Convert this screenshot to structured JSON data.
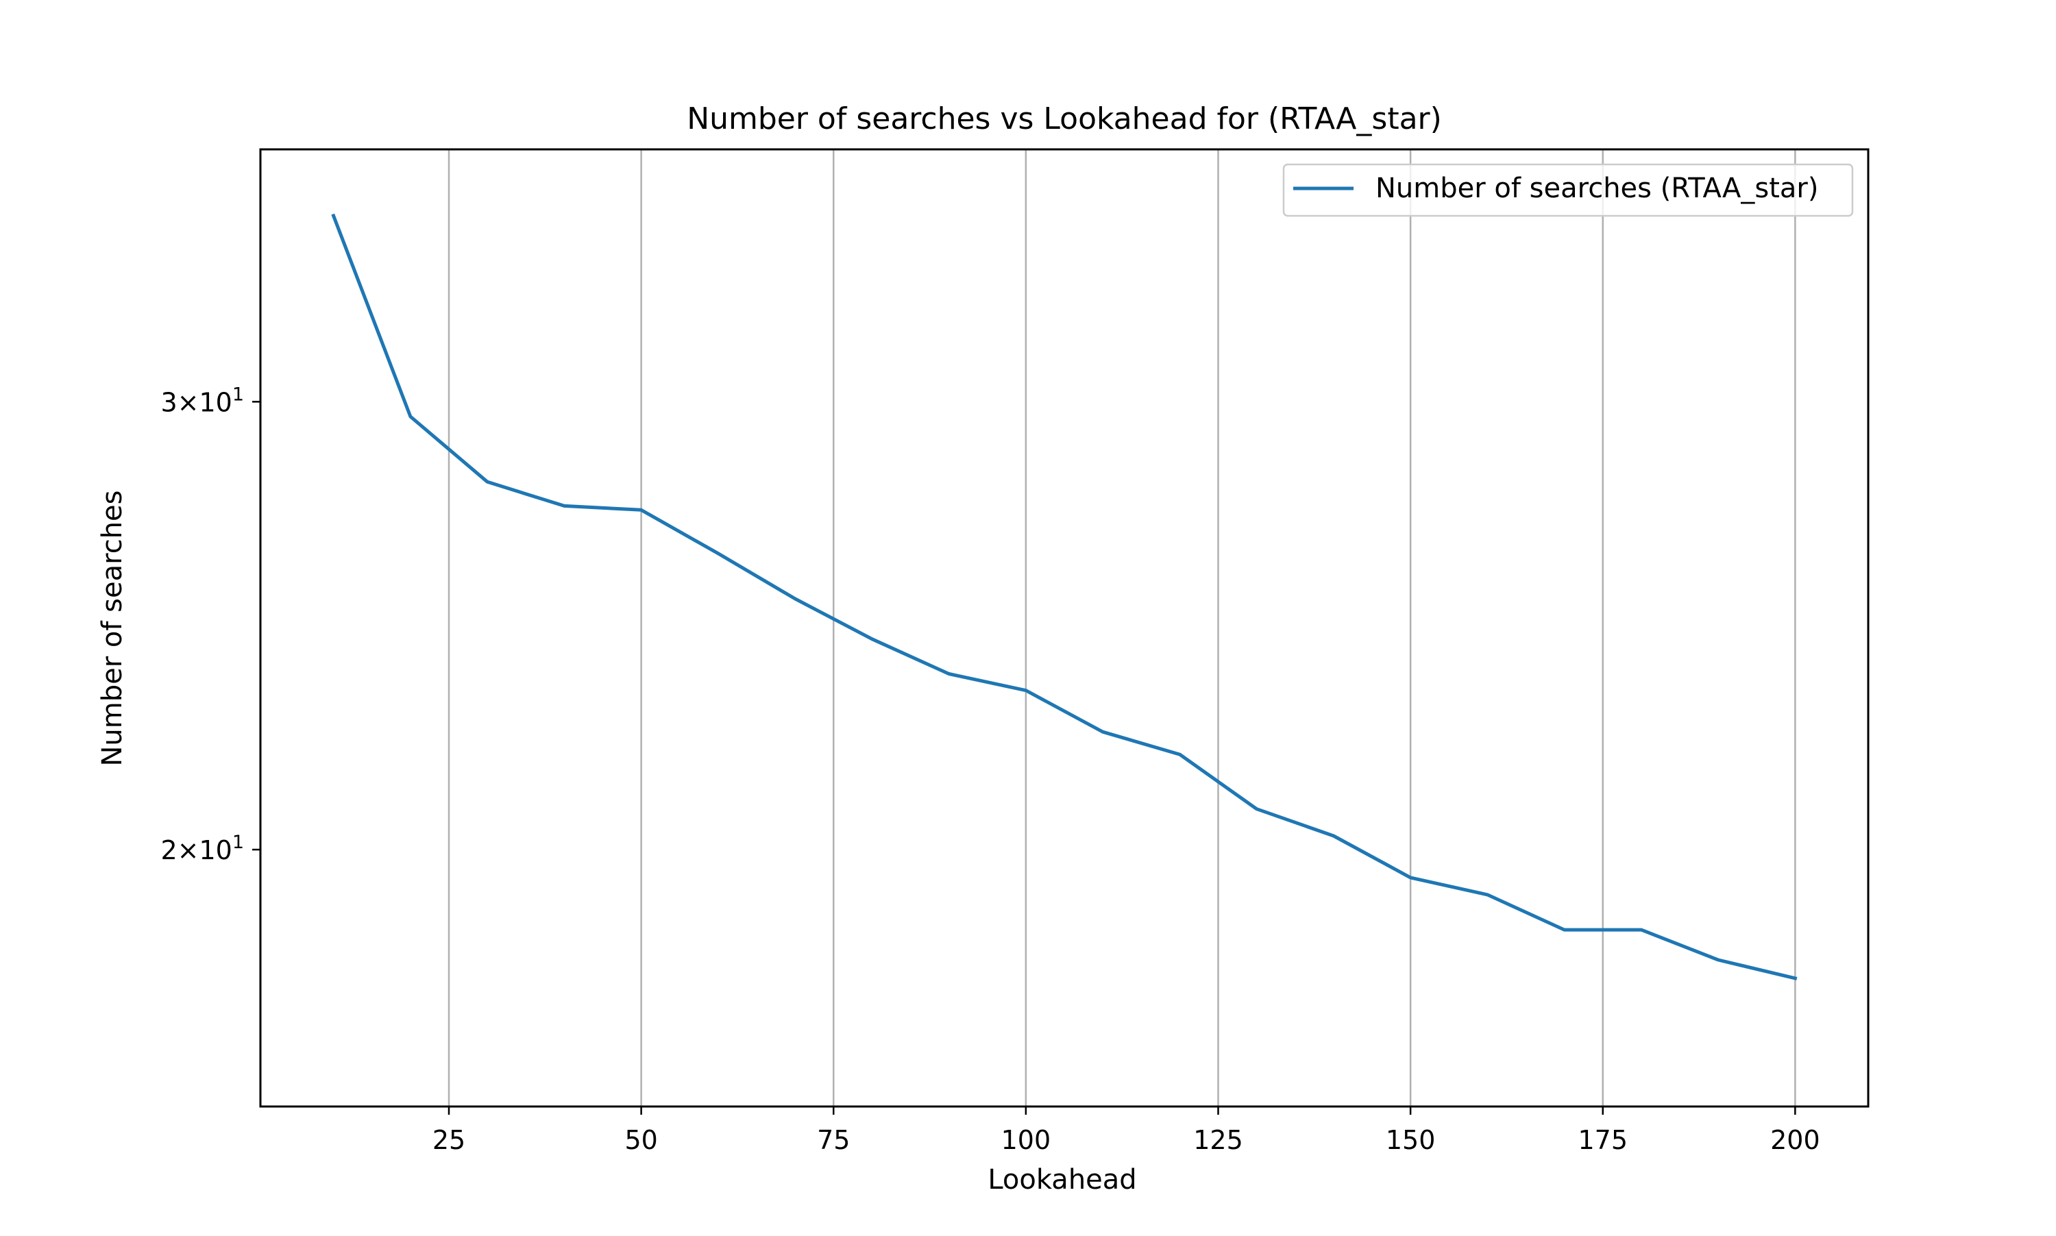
{
  "chart_data": {
    "type": "line",
    "title": "Number of searches vs Lookahead for  (RTAA_star)",
    "xlabel": "Lookahead",
    "ylabel": "Number of searches",
    "x_scale": "linear",
    "y_scale": "log",
    "xlim": [
      0.5,
      209.5
    ],
    "ylim": [
      15.85,
      37.7
    ],
    "x_ticks": [
      25,
      50,
      75,
      100,
      125,
      150,
      175,
      200
    ],
    "x_tick_labels": [
      "25",
      "50",
      "75",
      "100",
      "125",
      "150",
      "175",
      "200"
    ],
    "y_ticks": [
      20,
      30
    ],
    "y_tick_mantissas": [
      "2",
      "3"
    ],
    "y_tick_base": "10",
    "y_tick_exponent": "1",
    "grid": "x-major",
    "legend_position": "top-right",
    "series": [
      {
        "name": "Number of searches (RTAA_star)",
        "color": "#1f77b4",
        "x": [
          10,
          20,
          30,
          40,
          50,
          60,
          70,
          80,
          90,
          100,
          110,
          120,
          130,
          140,
          150,
          160,
          170,
          180,
          190,
          200
        ],
        "y": [
          35.5,
          29.6,
          27.9,
          27.3,
          27.2,
          26.15,
          25.1,
          24.2,
          23.45,
          23.1,
          22.25,
          21.8,
          20.75,
          20.25,
          19.5,
          19.2,
          18.6,
          18.6,
          18.1,
          17.8
        ]
      }
    ]
  }
}
